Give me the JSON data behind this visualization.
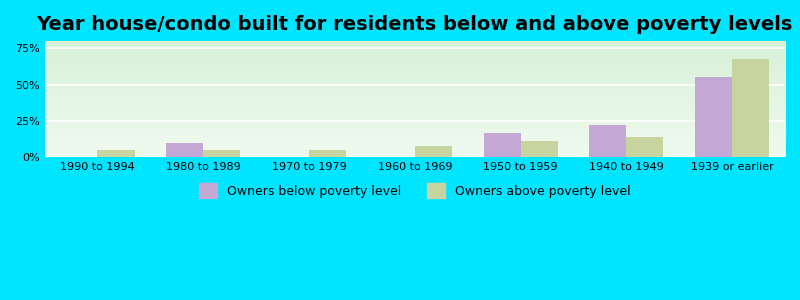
{
  "title": "Year house/condo built for residents below and above poverty levels",
  "categories": [
    "1990 to 1994",
    "1980 to 1989",
    "1970 to 1979",
    "1960 to 1969",
    "1950 to 1959",
    "1940 to 1949",
    "1939 or earlier"
  ],
  "below_poverty": [
    0,
    10,
    0,
    0,
    17,
    22,
    55
  ],
  "above_poverty": [
    5,
    5,
    5,
    8,
    11,
    14,
    68
  ],
  "below_color": "#c4a8d4",
  "above_color": "#c8d4a0",
  "ylabel_ticks": [
    0,
    25,
    50,
    75
  ],
  "ylim": [
    0,
    80
  ],
  "background_top": "#d8f0d8",
  "background_bottom": "#f0faf0",
  "outer_bg": "#00e5ff",
  "title_fontsize": 14,
  "legend_below": "Owners below poverty level",
  "legend_above": "Owners above poverty level"
}
